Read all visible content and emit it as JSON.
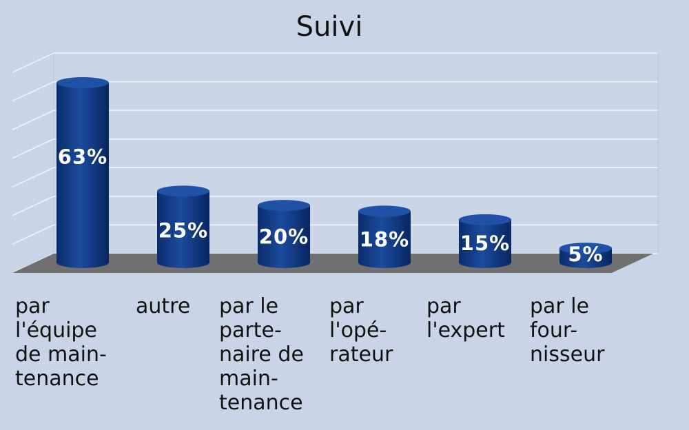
{
  "chart_data": {
    "type": "bar",
    "title": "Suivi",
    "categories": [
      [
        "par",
        "l'équipe",
        "de main-",
        "tenance"
      ],
      [
        "autre"
      ],
      [
        "par le",
        "parte-",
        "naire de",
        "main-",
        "tenance"
      ],
      [
        "par",
        "l'opé-",
        "rateur"
      ],
      [
        "par",
        "l'expert"
      ],
      [
        "par le",
        "four-",
        "nisseur"
      ]
    ],
    "values": [
      63,
      25,
      20,
      18,
      15,
      5
    ],
    "value_labels": [
      "63%",
      "25%",
      "20%",
      "18%",
      "15%",
      "5%"
    ],
    "ylim": [
      0,
      70
    ],
    "grid": true,
    "legend": "none",
    "colors": {
      "bar": "#0d3a86",
      "bar_top": "#1f52a6",
      "floor": "#6e6e6e",
      "background": "#c9d5e6"
    }
  }
}
